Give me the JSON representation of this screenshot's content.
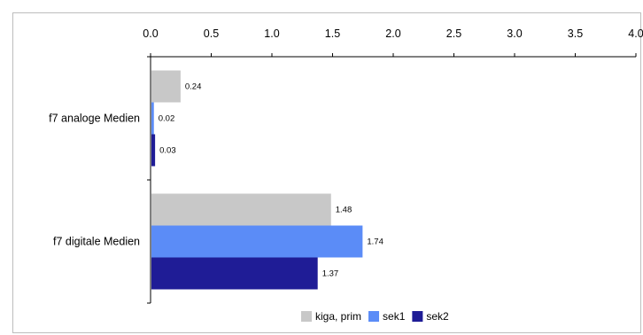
{
  "chart_data": {
    "type": "bar",
    "orientation": "horizontal",
    "title": "",
    "xlabel": "",
    "ylabel": "",
    "xlim": [
      0.0,
      4.0
    ],
    "x_ticks": [
      "0.0",
      "0.5",
      "1.0",
      "1.5",
      "2.0",
      "2.5",
      "3.0",
      "3.5",
      "4.0"
    ],
    "x_axis_position": "top",
    "grid": false,
    "legend_position": "bottom",
    "categories": [
      "f7 analoge Medien",
      "f7 digitale Medien"
    ],
    "series": [
      {
        "name": "kiga, prim",
        "color": "#c8c8c8",
        "values": [
          0.24,
          1.48
        ],
        "labels": [
          "0.24",
          "1.48"
        ]
      },
      {
        "name": "sek1",
        "color": "#5b8cf7",
        "values": [
          0.02,
          1.74
        ],
        "labels": [
          "0.02",
          "1.74"
        ]
      },
      {
        "name": "sek2",
        "color": "#1f1c96",
        "values": [
          0.03,
          1.37
        ],
        "labels": [
          "0.03",
          "1.37"
        ]
      }
    ]
  }
}
